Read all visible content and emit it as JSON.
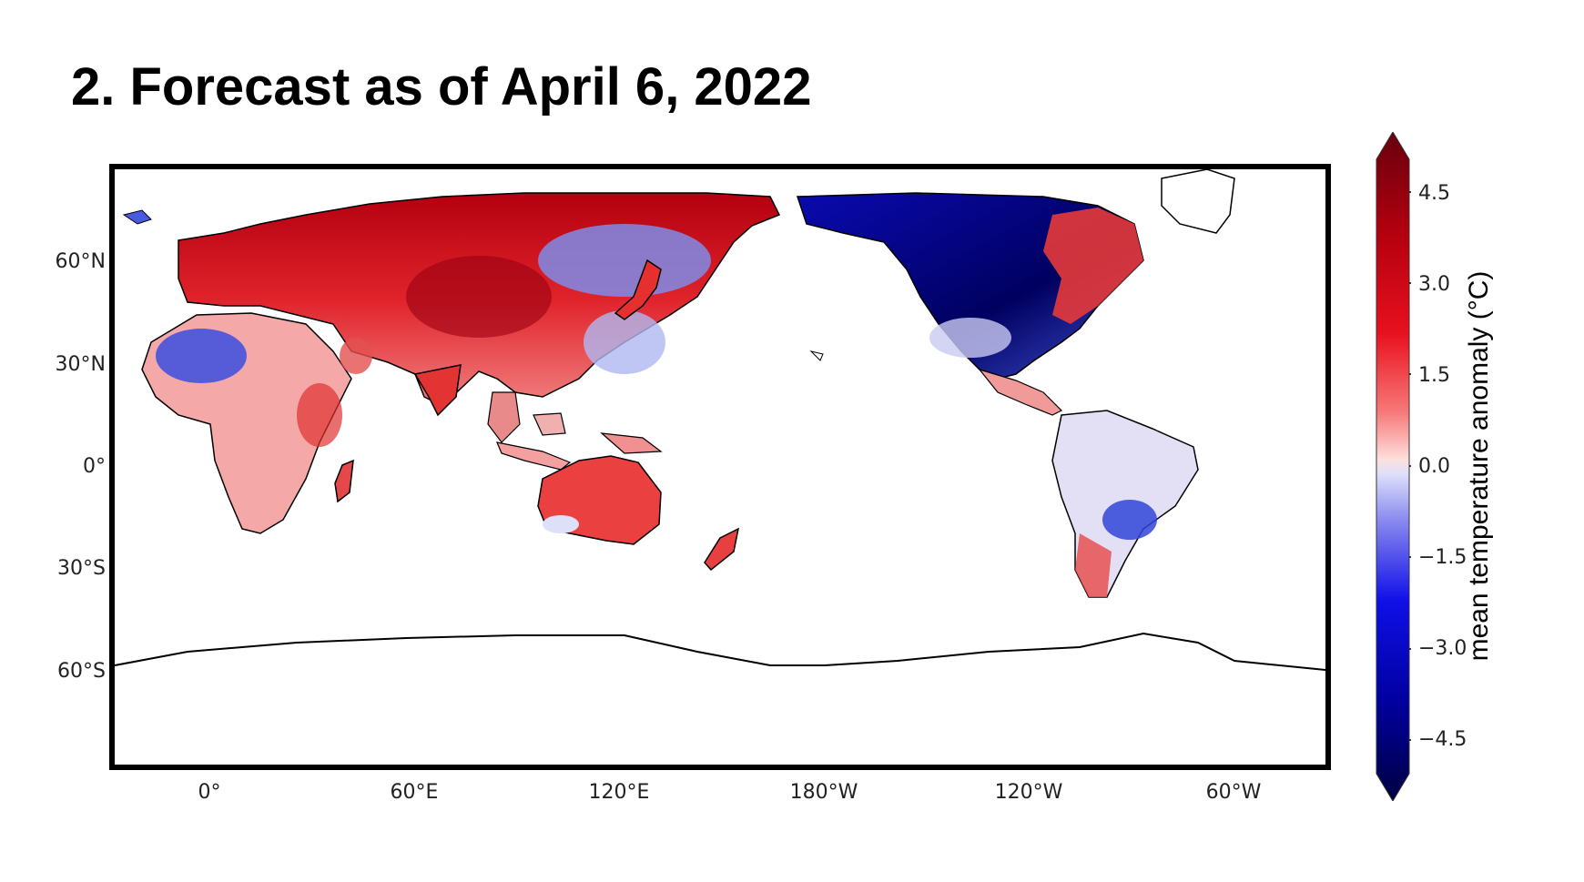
{
  "title": "2. Forecast as of April 6, 2022",
  "map": {
    "latitude_labels": [
      "60°N",
      "30°N",
      "0°",
      "30°S",
      "60°S"
    ],
    "longitude_labels": [
      "0°",
      "60°E",
      "120°E",
      "180°W",
      "120°W",
      "60°W"
    ]
  },
  "colorbar": {
    "label": "mean temperature anomaly (°C)",
    "ticks": [
      "4.5",
      "3.0",
      "1.5",
      "0.0",
      "−1.5",
      "−3.0",
      "−4.5"
    ],
    "range": [
      -5,
      5
    ],
    "colors": {
      "max": "#67000d",
      "warm": "#e8101e",
      "neutral_warm": "#fde0dd",
      "neutral_cool": "#e0e0fa",
      "cool": "#1010e8",
      "min": "#000040"
    }
  },
  "colors": {
    "coastline": "#000000",
    "border": "#999999"
  }
}
